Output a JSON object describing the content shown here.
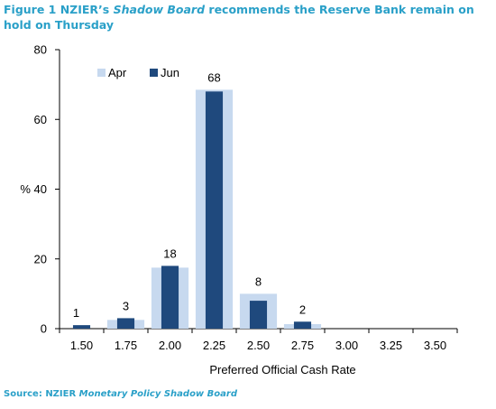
{
  "title": {
    "prefix": "Figure 1 NZIER’s ",
    "italic": "Shadow Board",
    "suffix": " recommends the Reserve Bank remain on hold on Thursday"
  },
  "source": {
    "prefix": "Source: NZIER ",
    "italic": "Monetary Policy Shadow Board"
  },
  "colors": {
    "accent": "#2aa0c8",
    "apr": "#c7d9ef",
    "jun": "#1f497d"
  },
  "chart_data": {
    "type": "bar",
    "title": "",
    "xlabel": "Preferred Official Cash Rate",
    "ylabel": "%",
    "ylim": [
      0,
      80
    ],
    "yticks": [
      0,
      20,
      40,
      60,
      80
    ],
    "grid": false,
    "legend_position": "top-left",
    "categories": [
      "1.50",
      "1.75",
      "2.00",
      "2.25",
      "2.50",
      "2.75",
      "3.00",
      "3.25",
      "3.50"
    ],
    "series": [
      {
        "name": "Apr",
        "values": [
          0,
          2.5,
          17.5,
          68.5,
          10,
          1.3,
          0,
          0,
          0
        ]
      },
      {
        "name": "Jun",
        "values": [
          1,
          3,
          18,
          68,
          8,
          2,
          0,
          0,
          0
        ]
      }
    ],
    "data_labels": [
      "1",
      "3",
      "18",
      "68",
      "8",
      "2",
      "",
      "",
      ""
    ]
  }
}
